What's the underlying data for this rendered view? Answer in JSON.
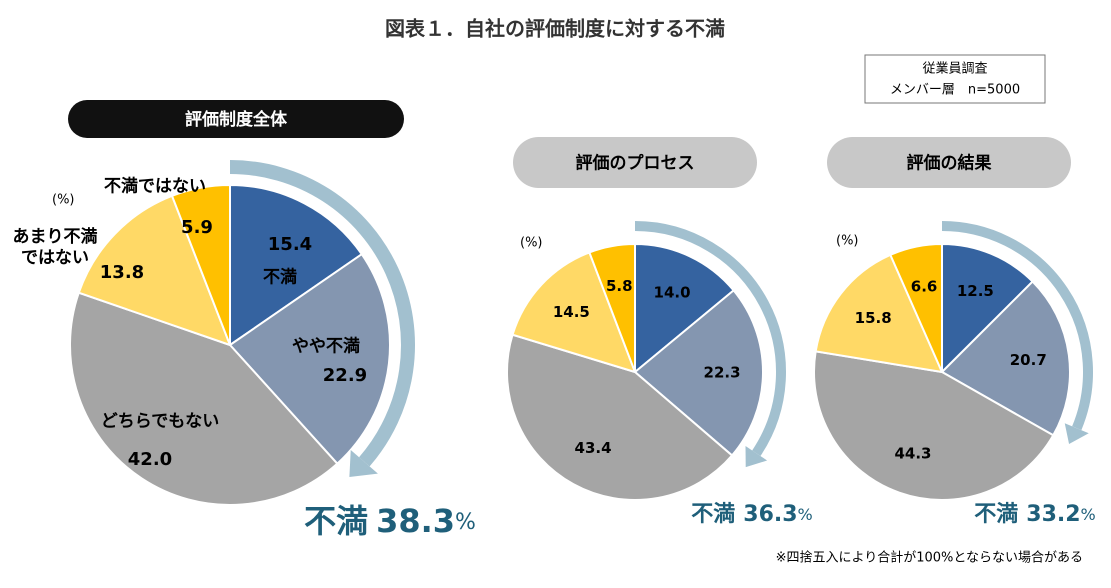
{
  "title": "図表１．自社の評価制度に対する不満",
  "survey": [
    "従業員調査",
    "メンバー層　n=5000"
  ],
  "note": "※四捨五入により合計が100%とならない場合がある",
  "chart_data": [
    {
      "type": "pie",
      "title": "評価制度全体",
      "unit": "(%)",
      "categories": [
        "不満",
        "やや不満",
        "どちらでもない",
        "あまり不満\nではない",
        "不満ではない"
      ],
      "values": [
        15.4,
        22.9,
        42.0,
        13.8,
        5.9
      ],
      "value_labels": [
        "15.4",
        "22.9",
        "42.0",
        "13.8",
        "5.9"
      ],
      "colors": [
        "#3563a0",
        "#8496b0",
        "#a5a5a5",
        "#ffd966",
        "#ffc000"
      ],
      "summary_label": "不満",
      "summary_value": 38.3,
      "summary_unit": "%"
    },
    {
      "type": "pie",
      "title": "評価のプロセス",
      "unit": "(%)",
      "categories": [
        null,
        null,
        null,
        null,
        null
      ],
      "values": [
        14.0,
        22.3,
        43.4,
        14.5,
        5.8
      ],
      "value_labels": [
        "14.0",
        "22.3",
        "43.4",
        "14.5",
        "5.8"
      ],
      "colors": [
        "#3563a0",
        "#8496b0",
        "#a5a5a5",
        "#ffd966",
        "#ffc000"
      ],
      "summary_label": "不満",
      "summary_value": 36.3,
      "summary_unit": "%"
    },
    {
      "type": "pie",
      "title": "評価の結果",
      "unit": "(%)",
      "categories": [
        null,
        null,
        null,
        null,
        null
      ],
      "values": [
        12.5,
        20.7,
        44.3,
        15.8,
        6.6
      ],
      "value_labels": [
        "12.5",
        "20.7",
        "44.3",
        "15.8",
        "6.6"
      ],
      "colors": [
        "#3563a0",
        "#8496b0",
        "#a5a5a5",
        "#ffd966",
        "#ffc000"
      ],
      "summary_label": "不満",
      "summary_value": 33.2,
      "summary_unit": "%"
    }
  ]
}
